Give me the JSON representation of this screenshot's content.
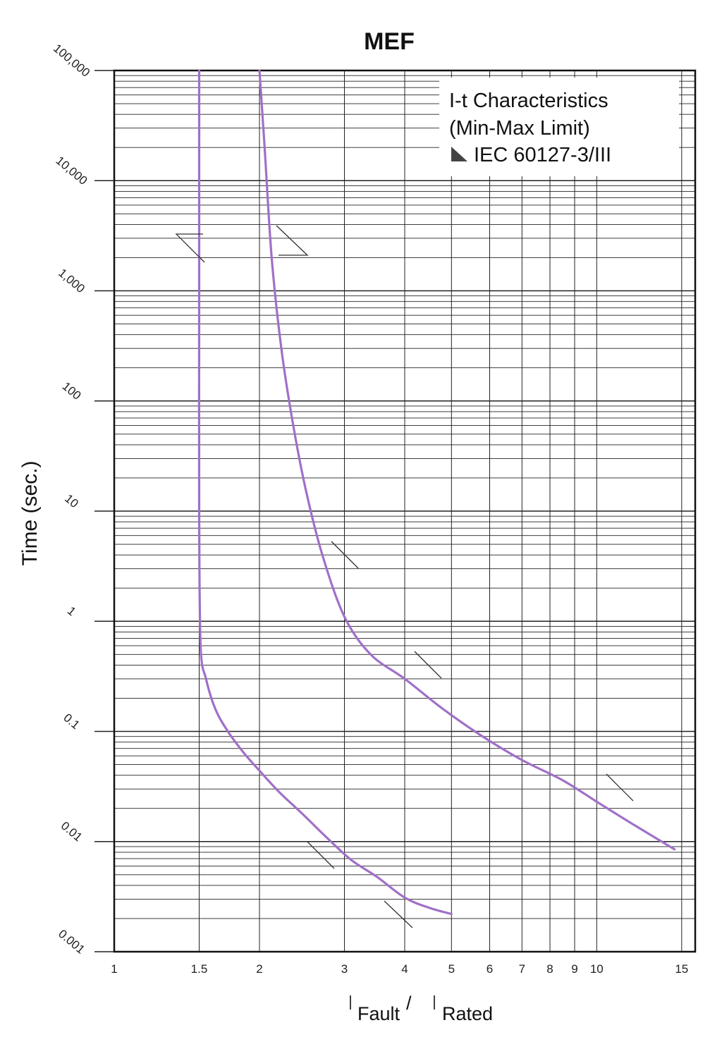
{
  "chart_data": {
    "type": "line",
    "title": "MEF",
    "ylabel": "Time (sec.)",
    "xlabel": {
      "numerator": "Fault",
      "separator": "/",
      "denominator": "Rated"
    },
    "x_scale": "log",
    "y_scale": "log",
    "xlim": [
      1,
      16
    ],
    "ylim": [
      0.001,
      100000
    ],
    "x_ticks": [
      1,
      1.5,
      2,
      3,
      4,
      5,
      6,
      7,
      8,
      9,
      10,
      15
    ],
    "x_tick_labels": [
      "1",
      "1.5",
      "2",
      "3",
      "4",
      "5",
      "6",
      "7",
      "8",
      "9",
      "10",
      "15"
    ],
    "y_ticks": [
      0.001,
      0.01,
      0.1,
      1,
      10,
      100,
      1000,
      10000,
      100000
    ],
    "y_tick_labels": [
      "0.001",
      "0.01",
      "0.1",
      "1",
      "10",
      "100",
      "1,000",
      "10,000",
      "100,000"
    ],
    "grid": true,
    "legend": {
      "position": "top-right",
      "lines": [
        "I-t Characteristics",
        "(Min-Max Limit)",
        "IEC 60127-3/III"
      ]
    },
    "curve_color": "#a070c8",
    "series": [
      {
        "x": [
          1.5,
          1.5,
          1.5,
          1.5,
          1.51,
          1.55,
          1.62,
          1.72,
          1.85,
          2.0,
          2.2,
          2.45,
          2.75,
          3.1,
          3.5,
          4.0,
          4.5,
          5.0
        ],
        "y": [
          100000,
          10000,
          1000,
          10,
          0.6,
          0.3,
          0.16,
          0.1,
          0.065,
          0.044,
          0.028,
          0.018,
          0.011,
          0.0068,
          0.0048,
          0.0031,
          0.0025,
          0.0022
        ]
      },
      {
        "x": [
          2.0,
          2.05,
          2.12,
          2.22,
          2.35,
          2.5,
          2.7,
          3.0,
          3.4,
          4.0,
          4.8,
          5.8,
          7.0,
          8.5,
          10.0,
          12.0,
          14.5
        ],
        "y": [
          100000,
          20000,
          2000,
          300,
          60,
          15,
          4,
          1.1,
          0.5,
          0.3,
          0.16,
          0.09,
          0.055,
          0.036,
          0.023,
          0.014,
          0.0085
        ]
      }
    ]
  }
}
